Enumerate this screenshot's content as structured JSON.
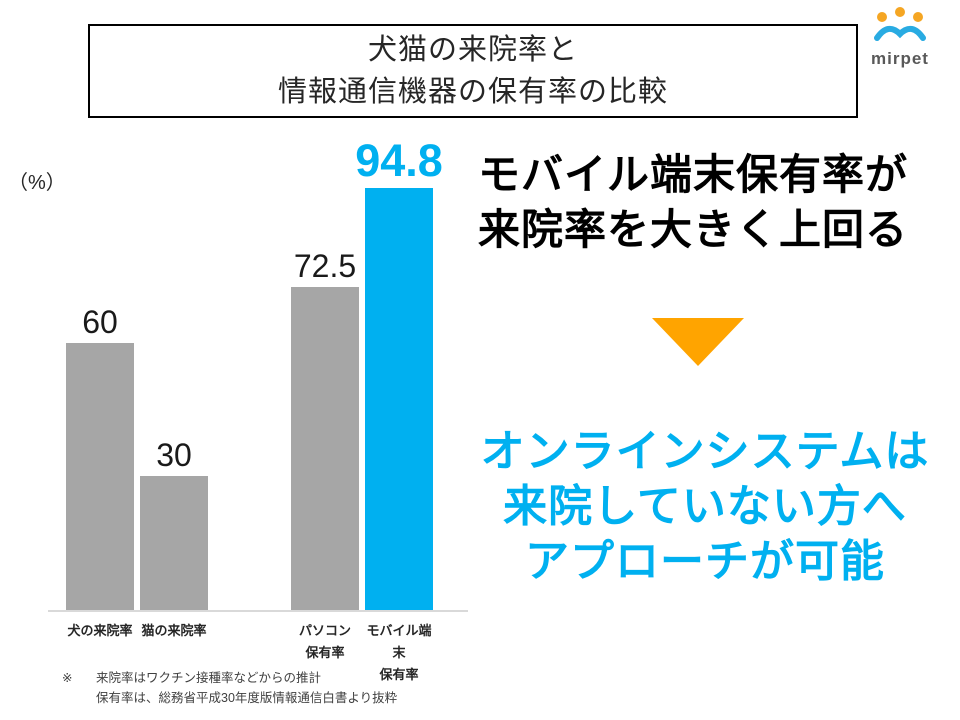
{
  "title": {
    "line1": "犬猫の来院率と",
    "line2": "情報通信機器の保有率の比較"
  },
  "logo": {
    "brand": "mirpet",
    "orange": "#F5A623",
    "blue": "#29ABE2"
  },
  "chart_data": {
    "type": "bar",
    "ylabel": "（%）",
    "categories": [
      "犬の来院率",
      "猫の来院率",
      "パソコン\n保有率",
      "モバイル端末\n保有率"
    ],
    "values": [
      60,
      30,
      72.5,
      94.8
    ],
    "ylim": [
      0,
      100
    ],
    "bar_colors": [
      "#A6A6A6",
      "#A6A6A6",
      "#A6A6A6",
      "#00B0F0"
    ],
    "highlight_index": 3,
    "grid": false,
    "legend": "none"
  },
  "insight": {
    "line1": "モバイル端末保有率が",
    "line2": "来院率を大きく上回る",
    "arrow_color": "#FFA400"
  },
  "conclusion": {
    "line1": "オンラインシステムは",
    "line2": "来院していない方へ",
    "line3": "アプローチが可能",
    "color": "#00B0F0"
  },
  "footnote": {
    "mark": "※",
    "line1": "来院率はワクチン接種率などからの推計",
    "line2": "保有率は、総務省平成30年度版情報通信白書より抜粋"
  }
}
